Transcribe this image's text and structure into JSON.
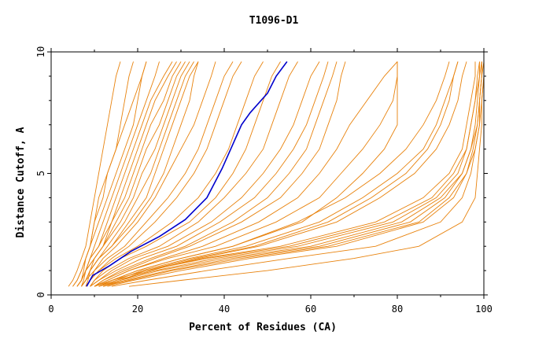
{
  "chart_data": {
    "type": "line",
    "title": "T1096-D1",
    "xlabel": "Percent of Residues (CA)",
    "ylabel": "Distance Cutoff, A",
    "xlim": [
      0,
      100
    ],
    "ylim": [
      0,
      10
    ],
    "x_ticks": [
      "0",
      "20",
      "40",
      "60",
      "80",
      "100"
    ],
    "y_ticks": [
      "0",
      "5",
      "10"
    ],
    "grid": false,
    "colors": {
      "models": "#e8820c",
      "highlight": "#0000cc",
      "frame": "#000000"
    },
    "highlight_series": {
      "y": [
        0.35,
        0.8,
        1.2,
        1.8,
        2.4,
        3.1,
        4.0,
        5.2,
        6.2,
        7.0,
        7.5,
        8.3,
        9.0,
        9.6
      ],
      "x": [
        8.2,
        9.6,
        13.5,
        18.5,
        25.0,
        31.0,
        36.0,
        39.5,
        42.0,
        44.0,
        46.0,
        50.0,
        52.0,
        54.5
      ]
    },
    "y_levels": [
      0.35,
      0.6,
      1.0,
      1.5,
      2.0,
      3.0,
      4.0,
      5.0,
      6.0,
      7.0,
      8.0,
      9.0,
      9.6
    ],
    "model_series": [
      {
        "x": [
          4,
          5,
          6,
          7,
          8,
          9,
          10,
          11,
          12,
          13,
          14,
          15,
          16
        ]
      },
      {
        "x": [
          5,
          6,
          7,
          8,
          9,
          10,
          12,
          13,
          15,
          16,
          17,
          18,
          19
        ]
      },
      {
        "x": [
          6,
          7,
          7.5,
          8,
          9,
          10,
          11,
          13,
          15,
          17,
          19,
          21,
          22
        ]
      },
      {
        "x": [
          5,
          6,
          7,
          8,
          9,
          11,
          13,
          15,
          17,
          19,
          20,
          21,
          22
        ]
      },
      {
        "x": [
          6,
          7,
          8,
          9,
          10,
          12,
          14,
          16,
          18,
          20,
          22,
          24,
          25
        ]
      },
      {
        "x": [
          6,
          7,
          8,
          9,
          11,
          13,
          15,
          17,
          19,
          21,
          23,
          26,
          28
        ]
      },
      {
        "x": [
          7,
          7.5,
          8,
          9,
          11,
          14,
          16,
          18,
          20,
          22,
          24,
          27,
          29
        ]
      },
      {
        "x": [
          6,
          7,
          8,
          10,
          12,
          14,
          17,
          19,
          21,
          23,
          26,
          28,
          30
        ]
      },
      {
        "x": [
          7,
          8,
          9,
          10,
          12,
          15,
          18,
          20,
          22,
          25,
          27,
          29,
          31
        ]
      },
      {
        "x": [
          6,
          7,
          8,
          10,
          12,
          16,
          19,
          21,
          24,
          26,
          28,
          30,
          32
        ]
      },
      {
        "x": [
          7,
          8,
          9,
          11,
          13,
          17,
          20,
          23,
          25,
          27,
          29,
          31,
          33
        ]
      },
      {
        "x": [
          7,
          8,
          9,
          11,
          14,
          18,
          22,
          24,
          26,
          28,
          30,
          32,
          34
        ]
      },
      {
        "x": [
          8,
          8.5,
          9,
          11,
          14,
          19,
          23,
          26,
          28,
          30,
          32,
          33,
          34
        ]
      },
      {
        "x": [
          7,
          8,
          10,
          12,
          15,
          20,
          24,
          27,
          30,
          33,
          35,
          37,
          38
        ]
      },
      {
        "x": [
          8,
          9,
          10,
          13,
          17,
          22,
          27,
          31,
          34,
          36,
          38,
          40,
          42
        ]
      },
      {
        "x": [
          8,
          9,
          11,
          14,
          18,
          24,
          29,
          33,
          36,
          38,
          40,
          42,
          44
        ]
      },
      {
        "x": [
          8,
          9,
          11,
          15,
          20,
          28,
          34,
          38,
          41,
          43,
          45,
          47,
          49
        ]
      },
      {
        "x": [
          9,
          10,
          12,
          16,
          22,
          32,
          38,
          42,
          45,
          47,
          49,
          51,
          53
        ]
      },
      {
        "x": [
          9,
          10,
          13,
          18,
          25,
          34,
          40,
          45,
          49,
          51,
          53,
          55,
          57
        ]
      },
      {
        "x": [
          9,
          11,
          14,
          19,
          27,
          37,
          44,
          49,
          53,
          56,
          58,
          60,
          62
        ]
      },
      {
        "x": [
          9,
          11,
          15,
          21,
          29,
          39,
          47,
          52,
          56,
          59,
          61,
          63,
          64
        ]
      },
      {
        "x": [
          10,
          12,
          16,
          23,
          31,
          42,
          50,
          55,
          59,
          61,
          63,
          65,
          66
        ]
      },
      {
        "x": [
          10,
          12,
          17,
          24,
          32,
          44,
          53,
          58,
          62,
          64,
          66,
          67,
          68
        ]
      },
      {
        "x": [
          10,
          13,
          18,
          26,
          35,
          48,
          57,
          62,
          66,
          69,
          73,
          77,
          80
        ]
      },
      {
        "x": [
          10,
          13,
          18,
          27,
          38,
          52,
          62,
          67,
          72,
          76,
          79,
          80,
          80
        ]
      },
      {
        "x": [
          11,
          14,
          20,
          30,
          42,
          58,
          66,
          72,
          77,
          80,
          80,
          80,
          80
        ]
      },
      {
        "x": [
          11,
          14,
          20,
          30,
          42,
          57,
          68,
          76,
          82,
          86,
          89,
          91,
          92
        ]
      },
      {
        "x": [
          11,
          15,
          21,
          32,
          45,
          62,
          72,
          80,
          86,
          89,
          91,
          93,
          94
        ]
      },
      {
        "x": [
          12,
          16,
          22,
          33,
          47,
          64,
          74,
          82,
          87,
          90,
          92,
          93,
          94
        ]
      },
      {
        "x": [
          12,
          16,
          23,
          34,
          48,
          66,
          76,
          84,
          89,
          92,
          94,
          95,
          96
        ]
      },
      {
        "x": [
          10,
          14,
          22,
          35,
          53,
          75,
          86,
          92,
          95,
          96,
          97,
          98,
          98
        ]
      },
      {
        "x": [
          10,
          14,
          22,
          36,
          55,
          77,
          88,
          93,
          96,
          97,
          98,
          98.5,
          99
        ]
      },
      {
        "x": [
          11,
          15,
          24,
          38,
          57,
          79,
          89,
          94,
          96,
          97,
          98,
          99,
          99
        ]
      },
      {
        "x": [
          11,
          16,
          25,
          40,
          60,
          81,
          90,
          95,
          97,
          98,
          98.5,
          99,
          99.5
        ]
      },
      {
        "x": [
          12,
          17,
          27,
          42,
          62,
          83,
          91,
          95,
          97,
          98.5,
          99,
          99.5,
          99.5
        ]
      },
      {
        "x": [
          12,
          18,
          28,
          44,
          64,
          85,
          92,
          96,
          97.5,
          98.5,
          99,
          99.5,
          99.5
        ]
      },
      {
        "x": [
          13,
          19,
          30,
          46,
          66,
          86,
          93,
          96,
          98,
          99,
          99,
          99.5,
          100
        ]
      },
      {
        "x": [
          14,
          22,
          36,
          55,
          75,
          90,
          95,
          97,
          98,
          99,
          99.5,
          100,
          100
        ]
      },
      {
        "x": [
          18,
          30,
          50,
          70,
          85,
          95,
          98,
          98.5,
          99,
          99.5,
          99.5,
          100,
          100
        ]
      }
    ]
  }
}
